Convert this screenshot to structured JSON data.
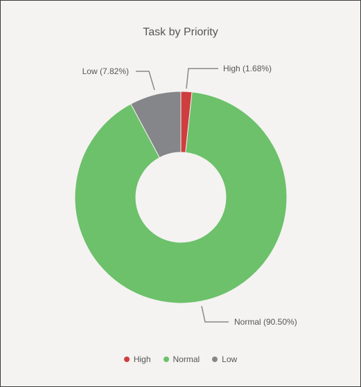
{
  "chart_data": {
    "type": "pie",
    "title": "Task by Priority",
    "slices": [
      {
        "label": "High",
        "value": 1.68,
        "display": "High (1.68%)",
        "color": "#cf3e3e"
      },
      {
        "label": "Normal",
        "value": 90.5,
        "display": "Normal (90.50%)",
        "color": "#6cc16a"
      },
      {
        "label": "Low",
        "value": 7.82,
        "display": "Low (7.82%)",
        "color": "#858689"
      }
    ],
    "donut": true,
    "legend_position": "bottom",
    "colors": {
      "background": "#f4f3f1",
      "text": "#555555",
      "leader": "#888888"
    }
  }
}
